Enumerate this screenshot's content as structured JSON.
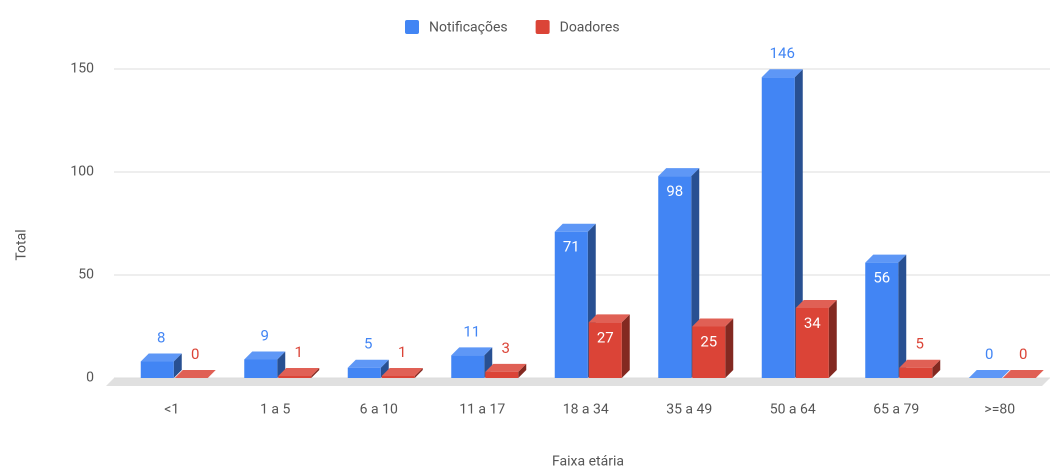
{
  "chart_data": {
    "type": "bar3d",
    "x_label": "Faixa etária",
    "y_label": "Total",
    "categories": [
      "<1",
      "1 a 5",
      "6 a 10",
      "11 a 17",
      "18 a 34",
      "35 a 49",
      "50 a 64",
      "65 a 79",
      ">=80"
    ],
    "series": [
      {
        "name": "Notificações",
        "color": "#4285f4",
        "values": [
          8,
          9,
          5,
          11,
          71,
          98,
          146,
          56,
          0
        ]
      },
      {
        "name": "Doadores",
        "color": "#db4437",
        "values": [
          0,
          1,
          1,
          3,
          27,
          25,
          34,
          5,
          0
        ]
      }
    ],
    "ylim": [
      0,
      150
    ],
    "yticks": [
      0,
      50,
      100,
      150
    ],
    "grid": true,
    "legend": "top"
  }
}
